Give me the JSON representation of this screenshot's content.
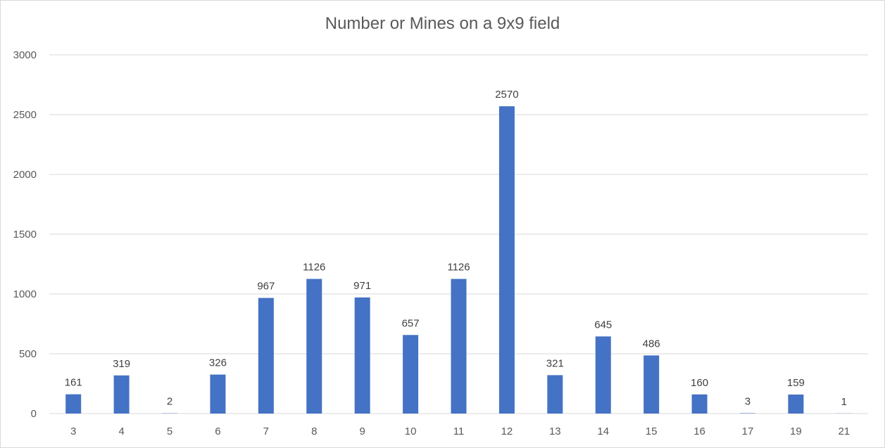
{
  "chart_data": {
    "type": "bar",
    "title": "Number or Mines on a 9x9 field",
    "xlabel": "",
    "ylabel": "",
    "categories": [
      "3",
      "4",
      "5",
      "6",
      "7",
      "8",
      "9",
      "10",
      "11",
      "12",
      "13",
      "14",
      "15",
      "16",
      "17",
      "19",
      "21"
    ],
    "values": [
      161,
      319,
      2,
      326,
      967,
      1126,
      971,
      657,
      1126,
      2570,
      321,
      645,
      486,
      160,
      3,
      159,
      1
    ],
    "ylim": [
      0,
      3000
    ],
    "yticks": [
      "0",
      "500",
      "1000",
      "1500",
      "2000",
      "2500",
      "3000"
    ],
    "grid": true,
    "legend": "none",
    "data_labels": true,
    "colors": {
      "bar": "#4472c4",
      "grid": "#d9d9d9",
      "text": "#595959",
      "label": "#404040"
    }
  }
}
